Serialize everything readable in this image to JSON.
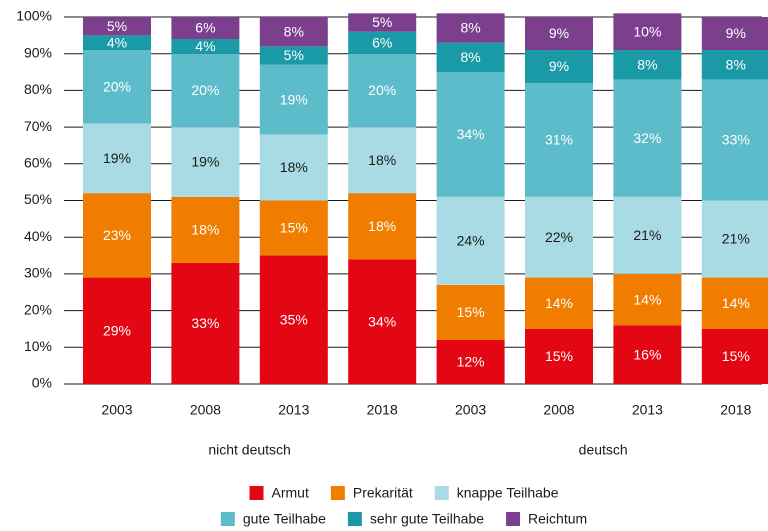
{
  "chart_data": {
    "type": "stacked_bar",
    "categories": [
      "2003",
      "2008",
      "2013",
      "2018",
      "2003",
      "2008",
      "2013",
      "2018"
    ],
    "groups": [
      "nicht deutsch",
      "deutsch"
    ],
    "ylim": [
      0,
      100
    ],
    "yticks": [
      {
        "value": 0,
        "label": "0%"
      },
      {
        "value": 10,
        "label": "10%"
      },
      {
        "value": 20,
        "label": "20%"
      },
      {
        "value": 30,
        "label": "30%"
      },
      {
        "value": 40,
        "label": "40%"
      },
      {
        "value": 50,
        "label": "50%"
      },
      {
        "value": 60,
        "label": "60%"
      },
      {
        "value": 70,
        "label": "70%"
      },
      {
        "value": 80,
        "label": "80%"
      },
      {
        "value": 90,
        "label": "90%"
      },
      {
        "value": 100,
        "label": "100%"
      }
    ],
    "grid": true,
    "series": [
      {
        "name": "Armut",
        "color": "#e30613",
        "label_color": "#ffffff",
        "values": [
          29,
          33,
          35,
          34,
          12,
          15,
          16,
          15
        ],
        "value_labels": [
          "29%",
          "33%",
          "35%",
          "34%",
          "12%",
          "15%",
          "16%",
          "15%"
        ]
      },
      {
        "name": "Prekarität",
        "color": "#f07d00",
        "label_color": "#ffffff",
        "values": [
          23,
          18,
          15,
          18,
          15,
          14,
          14,
          14
        ],
        "value_labels": [
          "23%",
          "18%",
          "15%",
          "18%",
          "15%",
          "14%",
          "14%",
          "14%"
        ]
      },
      {
        "name": "knappe Teilhabe",
        "color": "#a8dbe3",
        "label_color": "#1a1a1a",
        "values": [
          19,
          19,
          18,
          18,
          24,
          22,
          21,
          21
        ],
        "value_labels": [
          "19%",
          "19%",
          "18%",
          "18%",
          "24%",
          "22%",
          "21%",
          "21%"
        ]
      },
      {
        "name": "gute Teilhabe",
        "color": "#5cbcc9",
        "label_color": "#ffffff",
        "values": [
          20,
          20,
          19,
          20,
          34,
          31,
          32,
          33
        ],
        "value_labels": [
          "20%",
          "20%",
          "19%",
          "20%",
          "34%",
          "31%",
          "32%",
          "33%"
        ]
      },
      {
        "name": "sehr gute Teilhabe",
        "color": "#1a9aa6",
        "label_color": "#ffffff",
        "values": [
          4,
          4,
          5,
          6,
          8,
          9,
          8,
          8
        ],
        "value_labels": [
          "4%",
          "4%",
          "5%",
          "6%",
          "8%",
          "9%",
          "8%",
          "8%"
        ]
      },
      {
        "name": "Reichtum",
        "color": "#7b3f8d",
        "label_color": "#ffffff",
        "values": [
          5,
          6,
          8,
          5,
          8,
          9,
          10,
          9
        ],
        "value_labels": [
          "5%",
          "6%",
          "8%",
          "5%",
          "8%",
          "9%",
          "10%",
          "9%"
        ]
      }
    ]
  }
}
